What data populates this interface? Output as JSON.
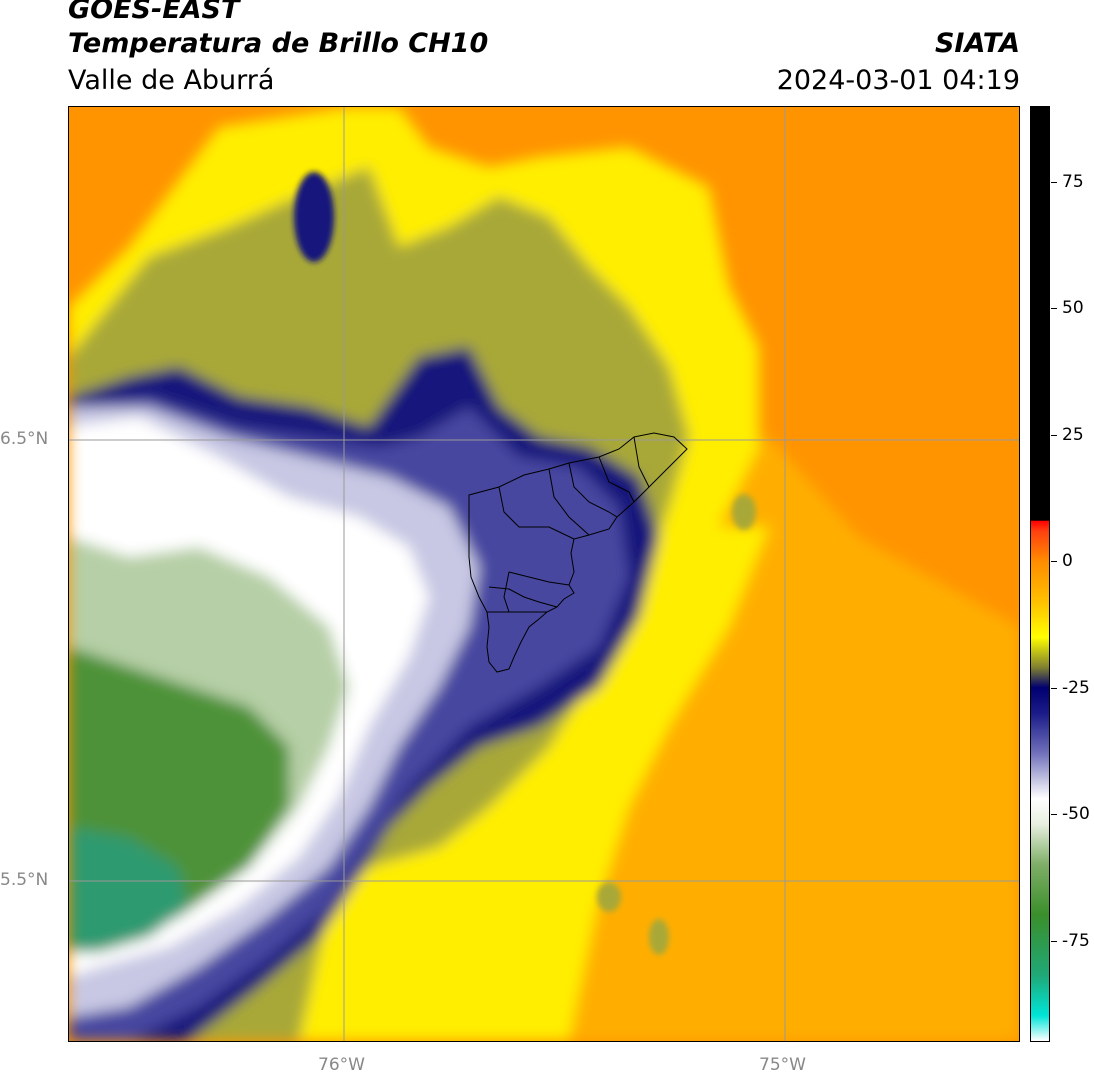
{
  "header": {
    "satellite": "GOES-EAST",
    "product": "Temperatura de Brillo CH10",
    "region": "Valle de Aburrá",
    "source": "SIATA",
    "datetime": "2024-03-01 04:19"
  },
  "axes": {
    "lat_labels": [
      "6.5°N",
      "5.5°N"
    ],
    "lon_labels": [
      "76°W",
      "75°W"
    ]
  },
  "colorbar": {
    "ticks": [
      "75",
      "50",
      "25",
      "0",
      "-25",
      "-50",
      "-75"
    ],
    "tick_values": [
      75,
      50,
      25,
      0,
      -25,
      -50,
      -75
    ],
    "vmin": -95,
    "vmax": 90,
    "stops": [
      {
        "v": -95,
        "c": "#ffffff"
      },
      {
        "v": -90,
        "c": "#00e5d8"
      },
      {
        "v": -82,
        "c": "#20a878"
      },
      {
        "v": -70,
        "c": "#3a8f2a"
      },
      {
        "v": -60,
        "c": "#7fae68"
      },
      {
        "v": -52,
        "c": "#e8f0e0"
      },
      {
        "v": -47,
        "c": "#ffffff"
      },
      {
        "v": -38,
        "c": "#7070bb"
      },
      {
        "v": -30,
        "c": "#1a1a88"
      },
      {
        "v": -25,
        "c": "#000070"
      },
      {
        "v": -21,
        "c": "#808030"
      },
      {
        "v": -15,
        "c": "#ffff00"
      },
      {
        "v": -8,
        "c": "#ffc000"
      },
      {
        "v": 0,
        "c": "#ff8c00"
      },
      {
        "v": 6,
        "c": "#ff4010"
      },
      {
        "v": 8,
        "c": "#ff0000"
      },
      {
        "v": 8.1,
        "c": "#000000"
      },
      {
        "v": 90,
        "c": "#000000"
      }
    ]
  },
  "map": {
    "colors": {
      "orange": "#ff9400",
      "light_orange": "#ffae00",
      "yellow": "#ffee00",
      "olive": "#a8a838",
      "navy": "#12127c",
      "blue": "#4646a0",
      "lavender": "#c8c8e4",
      "white": "#ffffff",
      "pale_green": "#b6cfa6",
      "green": "#4e9238",
      "teal": "#2f9a70"
    }
  }
}
